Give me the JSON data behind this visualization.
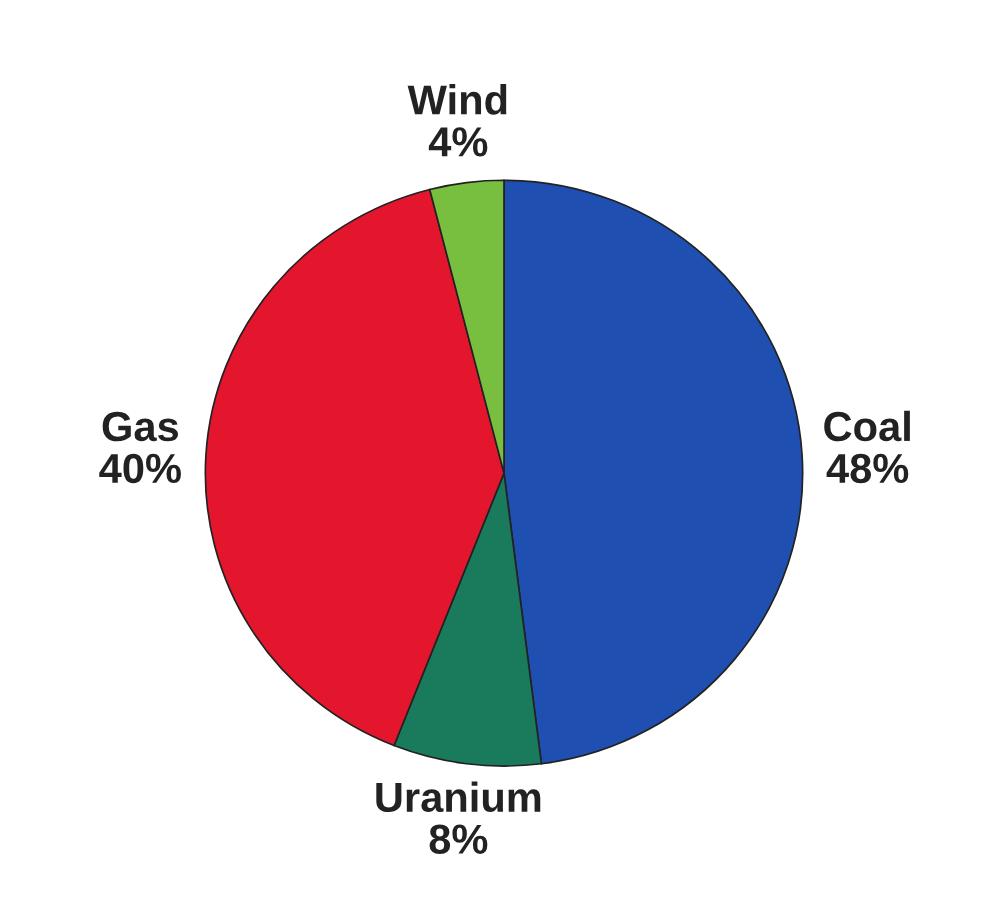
{
  "chart_data": {
    "type": "pie",
    "categories": [
      "Coal",
      "Uranium",
      "Gas",
      "Wind"
    ],
    "values": [
      48,
      8,
      40,
      4
    ],
    "colors": [
      "#1f4fb0",
      "#1a7a5c",
      "#e3162e",
      "#78bf3f"
    ],
    "value_labels": [
      "48%",
      "8%",
      "40%",
      "4%"
    ]
  }
}
